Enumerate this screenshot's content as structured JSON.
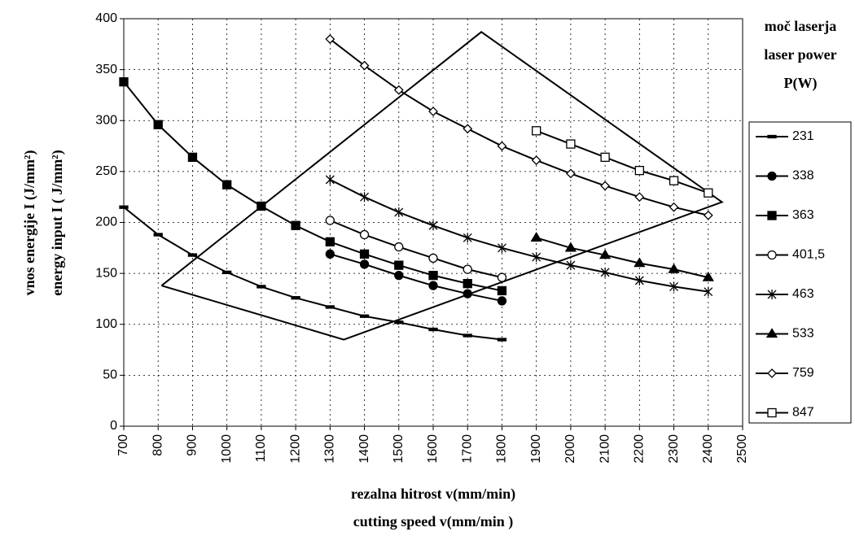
{
  "chart_data": {
    "type": "line",
    "x_title": [
      "rezalna hitrost v(mm/min)",
      "cutting speed v(mm/min )"
    ],
    "y_title": [
      "vnos energije I (J/mm²)",
      "energy input I ( J/mm²)"
    ],
    "legend_title": [
      "moč laserja",
      "laser power",
      "P(W)"
    ],
    "xlim": [
      700,
      2500
    ],
    "xticks": [
      700,
      800,
      900,
      1000,
      1100,
      1200,
      1300,
      1400,
      1500,
      1600,
      1700,
      1800,
      1900,
      2000,
      2100,
      2200,
      2300,
      2400,
      2500
    ],
    "ylim": [
      0,
      400
    ],
    "yticks": [
      0,
      50,
      100,
      150,
      200,
      250,
      300,
      350,
      400
    ],
    "grid": true,
    "legend": "right",
    "color": "#000000",
    "series": [
      {
        "name": "231",
        "marker": "dash",
        "x": [
          700,
          800,
          900,
          1000,
          1100,
          1200,
          1300,
          1400,
          1500,
          1600,
          1700,
          1800
        ],
        "values": [
          215,
          188,
          168,
          151,
          137,
          126,
          117,
          108,
          102,
          95,
          89,
          85
        ]
      },
      {
        "name": "338",
        "marker": "circle-filled",
        "x": [
          1300,
          1400,
          1500,
          1600,
          1700,
          1800
        ],
        "values": [
          169,
          159,
          148,
          138,
          130,
          123
        ]
      },
      {
        "name": "363",
        "marker": "square-filled",
        "x": [
          700,
          800,
          900,
          1000,
          1100,
          1200,
          1300,
          1400,
          1500,
          1600,
          1700,
          1800
        ],
        "values": [
          338,
          296,
          264,
          237,
          216,
          197,
          181,
          169,
          158,
          148,
          140,
          133
        ]
      },
      {
        "name": "401,5",
        "marker": "circle-open",
        "x": [
          1300,
          1400,
          1500,
          1600,
          1700,
          1800
        ],
        "values": [
          202,
          188,
          176,
          165,
          154,
          146
        ]
      },
      {
        "name": "463",
        "marker": "asterisk",
        "x": [
          1300,
          1400,
          1500,
          1600,
          1700,
          1800,
          1900,
          2000,
          2100,
          2200,
          2300,
          2400
        ],
        "values": [
          242,
          225,
          210,
          197,
          185,
          175,
          166,
          158,
          151,
          143,
          137,
          132
        ]
      },
      {
        "name": "533",
        "marker": "triangle-filled",
        "x": [
          1900,
          2000,
          2100,
          2200,
          2300,
          2400
        ],
        "values": [
          185,
          175,
          168,
          160,
          154,
          146
        ]
      },
      {
        "name": "759",
        "marker": "diamond-open",
        "x": [
          1300,
          1400,
          1500,
          1600,
          1700,
          1800,
          1900,
          2000,
          2100,
          2200,
          2300,
          2400
        ],
        "values": [
          380,
          354,
          330,
          309,
          292,
          275,
          261,
          248,
          236,
          225,
          215,
          207
        ]
      },
      {
        "name": "847",
        "marker": "square-open",
        "x": [
          1900,
          2000,
          2100,
          2200,
          2300,
          2400
        ],
        "values": [
          290,
          277,
          264,
          251,
          241,
          229
        ]
      }
    ],
    "region": {
      "x": [
        810,
        1340,
        2440,
        1740,
        810
      ],
      "y": [
        138,
        85,
        220,
        387,
        138
      ]
    }
  }
}
